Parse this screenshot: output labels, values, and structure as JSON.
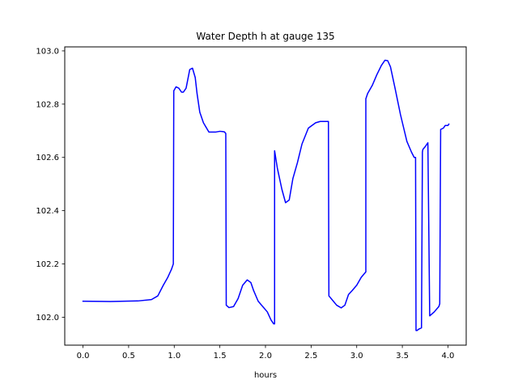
{
  "chart_data": {
    "type": "line",
    "title": "Water Depth h at gauge 135",
    "xlabel": "hours",
    "ylabel": "",
    "xlim": [
      -0.2,
      4.2
    ],
    "ylim": [
      101.895,
      103.015
    ],
    "xticks": [
      0.0,
      0.5,
      1.0,
      1.5,
      2.0,
      2.5,
      3.0,
      3.5,
      4.0
    ],
    "xtick_labels": [
      "0.0",
      "0.5",
      "1.0",
      "1.5",
      "2.0",
      "2.5",
      "3.0",
      "3.5",
      "4.0"
    ],
    "yticks": [
      102.0,
      102.2,
      102.4,
      102.6,
      102.8,
      103.0
    ],
    "ytick_labels": [
      "102.0",
      "102.2",
      "102.4",
      "102.6",
      "102.8",
      "103.0"
    ],
    "grid": false,
    "series": [
      {
        "color": "#0000ff",
        "x": [
          0.0,
          0.3,
          0.6,
          0.75,
          0.82,
          0.88,
          0.93,
          0.97,
          0.99,
          0.995,
          1.02,
          1.05,
          1.08,
          1.1,
          1.13,
          1.17,
          1.2,
          1.23,
          1.25,
          1.28,
          1.32,
          1.38,
          1.45,
          1.5,
          1.53,
          1.55,
          1.565,
          1.57,
          1.6,
          1.65,
          1.7,
          1.75,
          1.8,
          1.84,
          1.87,
          1.92,
          1.97,
          2.02,
          2.06,
          2.09,
          2.1,
          2.1,
          2.13,
          2.18,
          2.22,
          2.26,
          2.3,
          2.35,
          2.4,
          2.47,
          2.55,
          2.6,
          2.65,
          2.68,
          2.69,
          2.695,
          2.72,
          2.78,
          2.83,
          2.87,
          2.91,
          2.95,
          3.0,
          3.05,
          3.1,
          3.1,
          3.12,
          3.17,
          3.22,
          3.27,
          3.31,
          3.34,
          3.37,
          3.42,
          3.48,
          3.55,
          3.6,
          3.63,
          3.645,
          3.65,
          3.66,
          3.68,
          3.71,
          3.72,
          3.725,
          3.75,
          3.77,
          3.78,
          3.8,
          3.85,
          3.9,
          3.91,
          3.92,
          3.95,
          3.97,
          4.0,
          4.01
        ],
        "y": [
          102.06,
          102.059,
          102.061,
          102.066,
          102.08,
          102.12,
          102.15,
          102.18,
          102.2,
          102.85,
          102.865,
          102.86,
          102.845,
          102.845,
          102.86,
          102.93,
          102.935,
          102.9,
          102.84,
          102.77,
          102.73,
          102.695,
          102.695,
          102.698,
          102.697,
          102.696,
          102.69,
          102.045,
          102.036,
          102.04,
          102.07,
          102.12,
          102.14,
          102.13,
          102.1,
          102.06,
          102.04,
          102.02,
          101.99,
          101.975,
          101.975,
          102.625,
          102.56,
          102.48,
          102.43,
          102.44,
          102.52,
          102.58,
          102.65,
          102.71,
          102.73,
          102.735,
          102.735,
          102.735,
          102.735,
          102.08,
          102.07,
          102.045,
          102.035,
          102.045,
          102.085,
          102.1,
          102.12,
          102.15,
          102.17,
          102.82,
          102.84,
          102.87,
          102.91,
          102.945,
          102.965,
          102.963,
          102.94,
          102.86,
          102.76,
          102.66,
          102.62,
          102.6,
          102.6,
          101.95,
          101.95,
          101.955,
          101.96,
          102.62,
          102.63,
          102.64,
          102.65,
          102.655,
          102.005,
          102.02,
          102.04,
          102.05,
          102.705,
          102.71,
          102.72,
          102.72,
          102.725
        ]
      }
    ]
  }
}
